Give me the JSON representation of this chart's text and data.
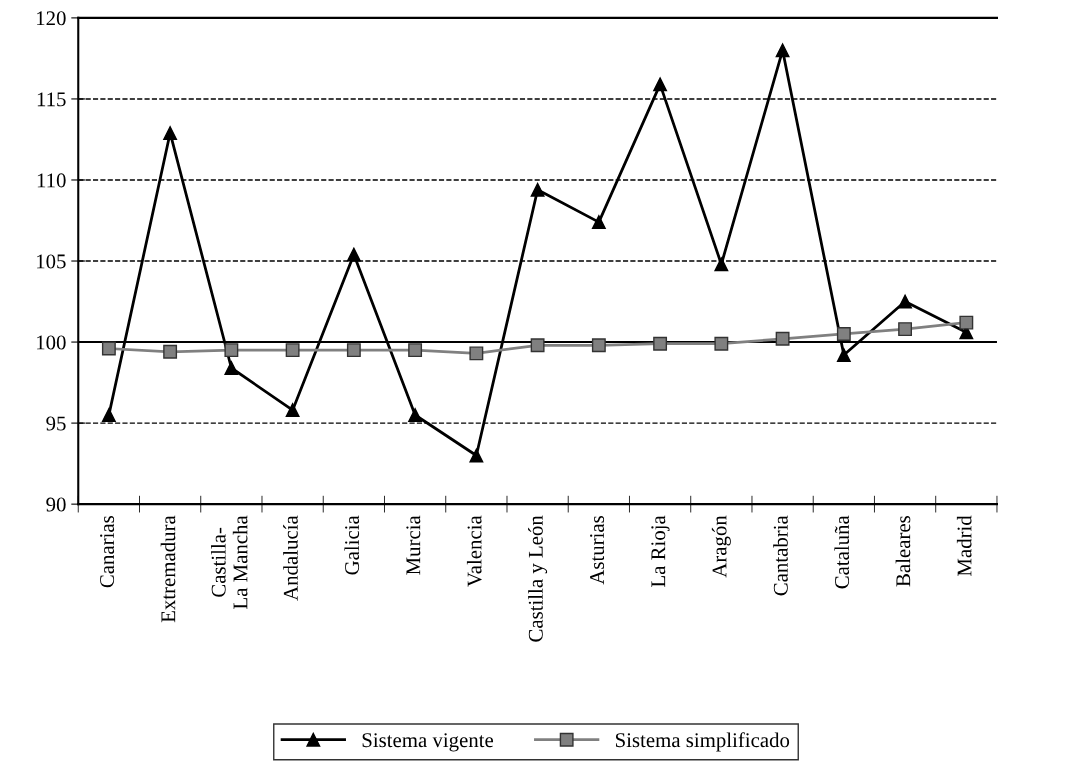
{
  "chart_data": {
    "type": "line",
    "categories": [
      "Canarias",
      "Extremadura",
      "Castilla-\nLa Mancha",
      "Andalucía",
      "Galicia",
      "Murcia",
      "Valencia",
      "Castilla y León",
      "Asturias",
      "La Rioja",
      "Aragón",
      "Cantabria",
      "Cataluña",
      "Baleares",
      "Madrid"
    ],
    "series": [
      {
        "name": "Sistema vigente",
        "color": "#000000",
        "marker": "triangle",
        "values": [
          95.5,
          112.9,
          98.4,
          95.8,
          105.4,
          95.5,
          93.0,
          109.4,
          107.4,
          115.9,
          104.8,
          118.0,
          99.2,
          102.5,
          100.6
        ]
      },
      {
        "name": "Sistema simplificado",
        "color": "#808080",
        "marker": "square",
        "values": [
          99.6,
          99.4,
          99.5,
          99.5,
          99.5,
          99.5,
          99.3,
          99.8,
          99.8,
          99.9,
          99.9,
          100.2,
          100.5,
          100.8,
          101.2
        ]
      }
    ],
    "ylim": [
      90,
      120
    ],
    "yticks": [
      90,
      95,
      100,
      105,
      110,
      115,
      120
    ],
    "grid": "y",
    "line_style": "solid",
    "legend": "bottom",
    "ref_lines": [
      {
        "axis": "y",
        "value": 100,
        "color": "#000000",
        "line_style": "solid"
      }
    ]
  }
}
